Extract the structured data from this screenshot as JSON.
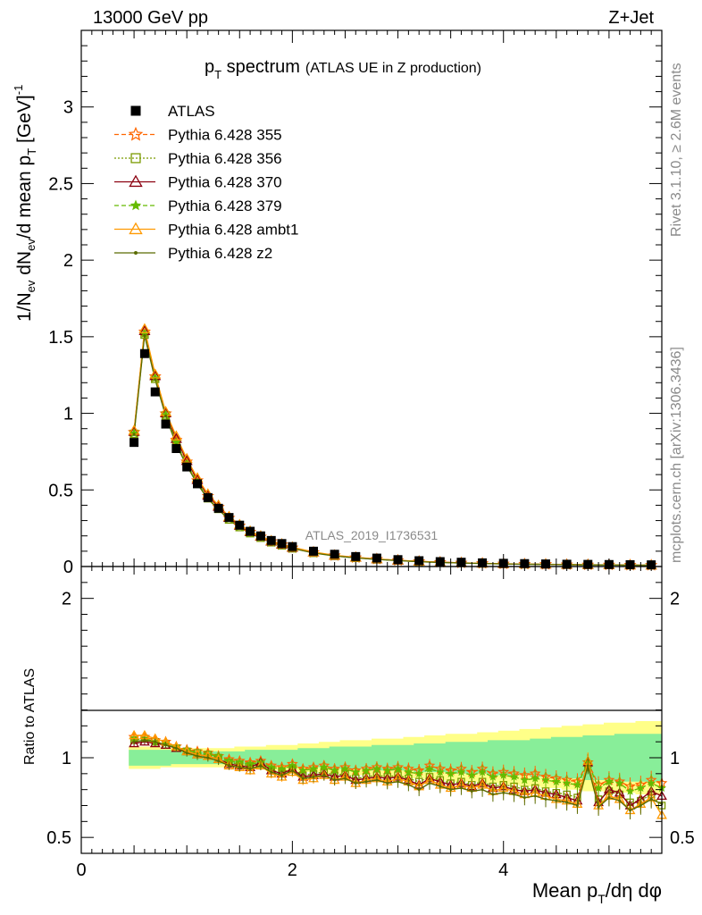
{
  "header": {
    "left": "13000 GeV pp",
    "right": "Z+Jet"
  },
  "title": {
    "main_p": "p",
    "main_sub": "T",
    "main_rest": " spectrum",
    "sub": "(ATLAS UE in Z production)"
  },
  "watermark": "ATLAS_2019_I1736531",
  "side_top": "Rivet 3.1.10, ≥ 2.6M events",
  "side_bottom": "mcplots.cern.ch [arXiv:1306.3436]",
  "ylabel_top": {
    "a": "1/N",
    "a_sub": "ev",
    "b": " dN",
    "b_sub": "ev",
    "c": "/d mean p",
    "c_sub": "T",
    "d": " [GeV]",
    "d_sup": "-1"
  },
  "ylabel_bottom": "Ratio to ATLAS",
  "xlabel": {
    "a": "Mean p",
    "a_sub": "T",
    "b": "/dη dφ"
  },
  "legend": [
    {
      "name": "ATLAS",
      "color": "#000000",
      "marker": "square",
      "dash": ""
    },
    {
      "name": "Pythia 6.428 355",
      "color": "#ff6600",
      "marker": "star",
      "dash": "5,3"
    },
    {
      "name": "Pythia 6.428 356",
      "color": "#7a9a00",
      "marker": "opensquare",
      "dash": "2,2"
    },
    {
      "name": "Pythia 6.428 370",
      "color": "#8b0010",
      "marker": "opentriangle",
      "dash": ""
    },
    {
      "name": "Pythia 6.428 379",
      "color": "#66bb00",
      "marker": "smallstar",
      "dash": "5,3"
    },
    {
      "name": "Pythia 6.428 ambt1",
      "color": "#ff9900",
      "marker": "opentriangle",
      "dash": ""
    },
    {
      "name": "Pythia 6.428 z2",
      "color": "#5a6b00",
      "marker": "dot",
      "dash": ""
    }
  ],
  "chart_data": {
    "type": "line",
    "xlim": [
      0,
      5.5
    ],
    "upper": {
      "ylim": [
        0,
        3.5
      ],
      "yticks": [
        "0",
        "0.5",
        "1",
        "1.5",
        "2",
        "2.5",
        "3"
      ],
      "x": [
        0.5,
        0.6,
        0.7,
        0.8,
        0.9,
        1.0,
        1.1,
        1.2,
        1.3,
        1.4,
        1.5,
        1.6,
        1.7,
        1.8,
        1.9,
        2.0,
        2.2,
        2.4,
        2.6,
        2.8,
        3.0,
        3.2,
        3.4,
        3.6,
        3.8,
        4.0,
        4.2,
        4.4,
        4.6,
        4.8,
        5.0,
        5.2,
        5.4
      ],
      "atlas": [
        0.81,
        1.39,
        1.14,
        0.93,
        0.77,
        0.65,
        0.54,
        0.45,
        0.38,
        0.32,
        0.27,
        0.23,
        0.2,
        0.17,
        0.15,
        0.13,
        0.1,
        0.08,
        0.065,
        0.055,
        0.045,
        0.038,
        0.032,
        0.028,
        0.024,
        0.021,
        0.019,
        0.017,
        0.015,
        0.014,
        0.013,
        0.012,
        0.011
      ],
      "mc": [
        0.87,
        1.52,
        1.23,
        0.99,
        0.81,
        0.67,
        0.55,
        0.45,
        0.38,
        0.31,
        0.26,
        0.22,
        0.19,
        0.16,
        0.14,
        0.12,
        0.09,
        0.07,
        0.057,
        0.047,
        0.039,
        0.032,
        0.027,
        0.023,
        0.02,
        0.017,
        0.015,
        0.014,
        0.012,
        0.011,
        0.01,
        0.009,
        0.008
      ]
    },
    "ratio": {
      "ylim": [
        0.4,
        2.2
      ],
      "yticks": [
        "0.5",
        "1",
        "2"
      ],
      "x": [
        0.5,
        0.6,
        0.7,
        0.8,
        0.9,
        1.0,
        1.1,
        1.2,
        1.3,
        1.4,
        1.5,
        1.6,
        1.7,
        1.8,
        1.9,
        2.0,
        2.1,
        2.2,
        2.3,
        2.4,
        2.5,
        2.6,
        2.7,
        2.8,
        2.9,
        3.0,
        3.1,
        3.2,
        3.3,
        3.4,
        3.5,
        3.6,
        3.7,
        3.8,
        3.9,
        4.0,
        4.1,
        4.2,
        4.3,
        4.4,
        4.5,
        4.6,
        4.7,
        4.8,
        4.9,
        5.0,
        5.1,
        5.2,
        5.3,
        5.4,
        5.5
      ],
      "band_inner": [
        0.05,
        0.05,
        0.05,
        0.05,
        0.04,
        0.04,
        0.04,
        0.04,
        0.04,
        0.04,
        0.04,
        0.05,
        0.05,
        0.05,
        0.05,
        0.05,
        0.06,
        0.06,
        0.06,
        0.07,
        0.07,
        0.07,
        0.07,
        0.08,
        0.08,
        0.08,
        0.08,
        0.09,
        0.09,
        0.09,
        0.1,
        0.1,
        0.1,
        0.1,
        0.11,
        0.11,
        0.11,
        0.11,
        0.12,
        0.12,
        0.13,
        0.13,
        0.13,
        0.14,
        0.14,
        0.14,
        0.15,
        0.15,
        0.15,
        0.15,
        0.15
      ],
      "band_outer": [
        0.07,
        0.07,
        0.07,
        0.06,
        0.06,
        0.06,
        0.06,
        0.06,
        0.06,
        0.06,
        0.07,
        0.07,
        0.07,
        0.08,
        0.08,
        0.08,
        0.09,
        0.09,
        0.1,
        0.1,
        0.11,
        0.11,
        0.11,
        0.12,
        0.12,
        0.12,
        0.13,
        0.13,
        0.14,
        0.14,
        0.15,
        0.15,
        0.15,
        0.16,
        0.16,
        0.17,
        0.17,
        0.18,
        0.18,
        0.19,
        0.19,
        0.2,
        0.2,
        0.21,
        0.21,
        0.22,
        0.22,
        0.22,
        0.23,
        0.23,
        0.23
      ],
      "series": [
        {
          "name": "Pythia 6.428 355",
          "values": [
            1.13,
            1.13,
            1.11,
            1.1,
            1.07,
            1.05,
            1.04,
            1.03,
            1.01,
            0.99,
            0.98,
            0.97,
            0.98,
            0.95,
            0.94,
            0.96,
            0.93,
            0.94,
            0.95,
            0.93,
            0.94,
            0.92,
            0.93,
            0.94,
            0.93,
            0.94,
            0.93,
            0.92,
            0.95,
            0.93,
            0.92,
            0.93,
            0.91,
            0.93,
            0.9,
            0.91,
            0.9,
            0.89,
            0.9,
            0.88,
            0.87,
            0.86,
            0.85,
            0.97,
            0.83,
            0.86,
            0.85,
            0.82,
            0.83,
            0.86,
            0.84
          ]
        },
        {
          "name": "Pythia 6.428 356",
          "values": [
            1.11,
            1.12,
            1.1,
            1.08,
            1.06,
            1.04,
            1.03,
            1.02,
            1.0,
            0.97,
            0.96,
            0.95,
            0.96,
            0.92,
            0.91,
            0.93,
            0.89,
            0.9,
            0.91,
            0.89,
            0.9,
            0.87,
            0.88,
            0.89,
            0.88,
            0.89,
            0.87,
            0.85,
            0.88,
            0.86,
            0.84,
            0.85,
            0.83,
            0.85,
            0.82,
            0.83,
            0.82,
            0.8,
            0.81,
            0.79,
            0.78,
            0.77,
            0.75,
            0.96,
            0.74,
            0.79,
            0.77,
            0.72,
            0.73,
            0.77,
            0.7
          ]
        },
        {
          "name": "Pythia 6.428 370",
          "values": [
            1.09,
            1.1,
            1.09,
            1.08,
            1.06,
            1.04,
            1.02,
            1.01,
            0.99,
            0.96,
            0.95,
            0.94,
            0.97,
            0.92,
            0.9,
            0.93,
            0.88,
            0.89,
            0.9,
            0.88,
            0.89,
            0.86,
            0.87,
            0.88,
            0.87,
            0.88,
            0.86,
            0.83,
            0.87,
            0.85,
            0.83,
            0.84,
            0.82,
            0.84,
            0.81,
            0.82,
            0.8,
            0.79,
            0.8,
            0.78,
            0.77,
            0.75,
            0.73,
            0.97,
            0.72,
            0.8,
            0.78,
            0.7,
            0.74,
            0.79,
            0.76
          ]
        },
        {
          "name": "Pythia 6.428 379",
          "values": [
            1.12,
            1.12,
            1.1,
            1.09,
            1.07,
            1.05,
            1.03,
            1.02,
            1.01,
            0.98,
            0.97,
            0.96,
            0.97,
            0.94,
            0.93,
            0.95,
            0.92,
            0.93,
            0.94,
            0.92,
            0.93,
            0.91,
            0.92,
            0.93,
            0.92,
            0.93,
            0.91,
            0.9,
            0.93,
            0.91,
            0.9,
            0.91,
            0.89,
            0.91,
            0.88,
            0.89,
            0.88,
            0.86,
            0.87,
            0.86,
            0.85,
            0.84,
            0.83,
            0.97,
            0.81,
            0.85,
            0.84,
            0.79,
            0.81,
            0.84,
            0.81
          ]
        },
        {
          "name": "Pythia 6.428 ambt1",
          "values": [
            1.14,
            1.14,
            1.12,
            1.1,
            1.07,
            1.04,
            1.02,
            1.01,
            0.99,
            0.95,
            0.94,
            0.92,
            0.95,
            0.9,
            0.88,
            0.91,
            0.86,
            0.87,
            0.89,
            0.86,
            0.88,
            0.84,
            0.86,
            0.87,
            0.85,
            0.87,
            0.85,
            0.82,
            0.86,
            0.83,
            0.81,
            0.83,
            0.81,
            0.83,
            0.79,
            0.81,
            0.79,
            0.77,
            0.78,
            0.76,
            0.74,
            0.73,
            0.71,
            0.98,
            0.7,
            0.76,
            0.74,
            0.67,
            0.71,
            0.75,
            0.64
          ]
        },
        {
          "name": "Pythia 6.428 z2",
          "values": [
            1.1,
            1.11,
            1.1,
            1.08,
            1.06,
            1.03,
            1.01,
            1.0,
            0.98,
            0.95,
            0.94,
            0.93,
            0.95,
            0.91,
            0.89,
            0.92,
            0.87,
            0.88,
            0.89,
            0.86,
            0.87,
            0.84,
            0.85,
            0.86,
            0.84,
            0.85,
            0.83,
            0.8,
            0.84,
            0.82,
            0.8,
            0.81,
            0.79,
            0.8,
            0.77,
            0.78,
            0.77,
            0.75,
            0.76,
            0.74,
            0.73,
            0.72,
            0.7,
            0.95,
            0.69,
            0.75,
            0.73,
            0.67,
            0.7,
            0.74,
            0.71
          ]
        }
      ]
    },
    "xticks": [
      "0",
      "2",
      "4"
    ],
    "colors": {
      "band_inner": "#88ee99",
      "band_outer": "#ffff88"
    }
  }
}
